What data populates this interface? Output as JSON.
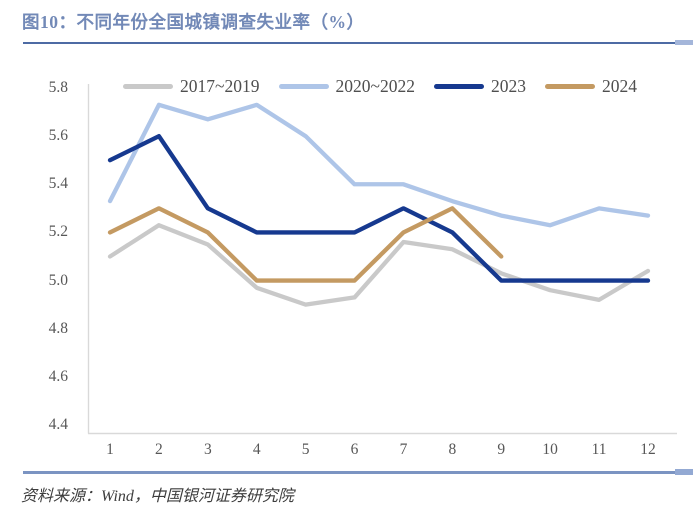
{
  "header": {
    "title": "图10：不同年份全国城镇调查失业率（%）"
  },
  "footer": {
    "source": "资料来源：Wind，中国银河证券研究院"
  },
  "colors": {
    "title_blue": "#7289b7",
    "rule_top": "#4d6ba4",
    "rule_top_end": "#a4b6da",
    "rule_bottom": "#7b94c2",
    "rule_bottom_end": "#93a9d3",
    "axis_line": "#d9d9d9",
    "tick_text": "#575757",
    "legend_text": "#4f4f4f",
    "source_text": "#3d3d3d",
    "background": "#ffffff"
  },
  "chart_data": {
    "type": "line",
    "title": "不同年份全国城镇调查失业率（%）",
    "xlabel": "",
    "ylabel": "",
    "x": [
      1,
      2,
      3,
      4,
      5,
      6,
      7,
      8,
      9,
      10,
      11,
      12
    ],
    "ylim": [
      4.4,
      5.8
    ],
    "yticks": [
      5.8,
      5.6,
      5.4,
      5.2,
      5.0,
      4.8,
      4.6,
      4.4
    ],
    "grid": false,
    "legend_position": "top",
    "series": [
      {
        "name": "2017~2019",
        "color": "#c9c9c9",
        "values": [
          5.1,
          5.23,
          5.15,
          4.97,
          4.9,
          4.93,
          5.16,
          5.13,
          5.03,
          4.96,
          4.92,
          5.04
        ]
      },
      {
        "name": "2020~2022",
        "color": "#aec5e8",
        "values": [
          5.33,
          5.73,
          5.67,
          5.73,
          5.6,
          5.4,
          5.4,
          5.33,
          5.27,
          5.23,
          5.3,
          5.27
        ]
      },
      {
        "name": "2023",
        "color": "#16398f",
        "values": [
          5.5,
          5.6,
          5.3,
          5.2,
          5.2,
          5.2,
          5.3,
          5.2,
          5.0,
          5.0,
          5.0,
          5.0
        ]
      },
      {
        "name": "2024",
        "color": "#c49a62",
        "values": [
          5.2,
          5.3,
          5.2,
          5.0,
          5.0,
          5.0,
          5.2,
          5.3,
          5.1
        ]
      }
    ]
  }
}
